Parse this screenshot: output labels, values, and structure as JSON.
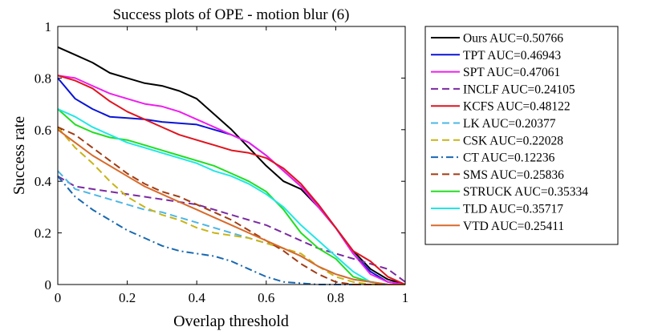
{
  "chart_data": {
    "type": "line",
    "title": "Success plots of OPE - motion blur (6)",
    "xlabel": "Overlap threshold",
    "ylabel": "Success rate",
    "xlim": [
      0,
      1
    ],
    "ylim": [
      0,
      1
    ],
    "xticks": [
      "0",
      "0.2",
      "0.4",
      "0.6",
      "0.8",
      "1"
    ],
    "yticks": [
      "0",
      "0.2",
      "0.4",
      "0.6",
      "0.8",
      "1"
    ],
    "legend_position": "outside-right",
    "x": [
      0,
      0.05,
      0.1,
      0.15,
      0.2,
      0.25,
      0.3,
      0.35,
      0.4,
      0.45,
      0.5,
      0.55,
      0.6,
      0.65,
      0.7,
      0.75,
      0.8,
      0.85,
      0.9,
      0.95,
      1
    ],
    "series": [
      {
        "name": "Ours AUC=0.50766",
        "color": "#000000",
        "dash": "solid",
        "values": [
          0.92,
          0.89,
          0.86,
          0.82,
          0.8,
          0.78,
          0.77,
          0.75,
          0.72,
          0.66,
          0.6,
          0.53,
          0.46,
          0.4,
          0.37,
          0.3,
          0.22,
          0.13,
          0.06,
          0.02,
          0.0
        ]
      },
      {
        "name": "TPT AUC=0.46943",
        "color": "#0a14d6",
        "dash": "solid",
        "values": [
          0.8,
          0.72,
          0.68,
          0.65,
          0.645,
          0.64,
          0.63,
          0.625,
          0.62,
          0.6,
          0.58,
          0.55,
          0.5,
          0.44,
          0.38,
          0.31,
          0.22,
          0.12,
          0.05,
          0.01,
          0.0
        ]
      },
      {
        "name": "SPT AUC=0.47061",
        "color": "#ee1eee",
        "dash": "solid",
        "values": [
          0.81,
          0.8,
          0.77,
          0.74,
          0.72,
          0.7,
          0.69,
          0.67,
          0.64,
          0.61,
          0.58,
          0.55,
          0.5,
          0.44,
          0.38,
          0.3,
          0.22,
          0.12,
          0.04,
          0.01,
          0.0
        ]
      },
      {
        "name": "INCLF AUC=0.24105",
        "color": "#7a2aa0",
        "dash": "dash",
        "values": [
          0.42,
          0.38,
          0.37,
          0.36,
          0.35,
          0.34,
          0.33,
          0.32,
          0.31,
          0.29,
          0.27,
          0.25,
          0.23,
          0.2,
          0.17,
          0.14,
          0.12,
          0.1,
          0.08,
          0.06,
          0.01
        ]
      },
      {
        "name": "KCFS AUC=0.48122",
        "color": "#e0141e",
        "dash": "solid",
        "values": [
          0.81,
          0.79,
          0.76,
          0.71,
          0.67,
          0.64,
          0.61,
          0.58,
          0.56,
          0.54,
          0.52,
          0.51,
          0.49,
          0.45,
          0.39,
          0.31,
          0.22,
          0.13,
          0.09,
          0.03,
          0.0
        ]
      },
      {
        "name": "LK AUC=0.20377",
        "color": "#4db6e6",
        "dash": "dash",
        "values": [
          0.44,
          0.37,
          0.35,
          0.33,
          0.31,
          0.29,
          0.28,
          0.26,
          0.24,
          0.22,
          0.2,
          0.18,
          0.16,
          0.14,
          0.11,
          0.07,
          0.04,
          0.02,
          0.01,
          0.0,
          0.0
        ]
      },
      {
        "name": "CSK AUC=0.22028",
        "color": "#c8b418",
        "dash": "dash",
        "values": [
          0.61,
          0.53,
          0.47,
          0.4,
          0.34,
          0.3,
          0.27,
          0.25,
          0.22,
          0.2,
          0.19,
          0.18,
          0.16,
          0.14,
          0.12,
          0.07,
          0.03,
          0.01,
          0.0,
          0.0,
          0.0
        ]
      },
      {
        "name": "CT AUC=0.12236",
        "color": "#1868b0",
        "dash": "dashdot",
        "values": [
          0.42,
          0.34,
          0.29,
          0.25,
          0.21,
          0.18,
          0.15,
          0.13,
          0.12,
          0.11,
          0.09,
          0.06,
          0.03,
          0.01,
          0.005,
          0.0,
          0.0,
          0.0,
          0.0,
          0.0,
          0.0
        ]
      },
      {
        "name": "SMS AUC=0.25836",
        "color": "#a03c14",
        "dash": "dash",
        "values": [
          0.61,
          0.58,
          0.53,
          0.48,
          0.43,
          0.39,
          0.36,
          0.34,
          0.31,
          0.28,
          0.25,
          0.21,
          0.17,
          0.13,
          0.08,
          0.04,
          0.01,
          0.0,
          0.0,
          0.0,
          0.0
        ]
      },
      {
        "name": "STRUCK AUC=0.35334",
        "color": "#22dd22",
        "dash": "solid",
        "values": [
          0.68,
          0.62,
          0.59,
          0.57,
          0.56,
          0.54,
          0.52,
          0.5,
          0.48,
          0.46,
          0.43,
          0.4,
          0.36,
          0.29,
          0.2,
          0.14,
          0.1,
          0.03,
          0.01,
          0.0,
          0.0
        ]
      },
      {
        "name": "TLD AUC=0.35717",
        "color": "#22e6e6",
        "dash": "solid",
        "values": [
          0.68,
          0.65,
          0.61,
          0.58,
          0.55,
          0.53,
          0.51,
          0.49,
          0.47,
          0.44,
          0.42,
          0.39,
          0.35,
          0.3,
          0.23,
          0.17,
          0.11,
          0.05,
          0.01,
          0.0,
          0.0
        ]
      },
      {
        "name": "VTD AUC=0.25411",
        "color": "#d86a2a",
        "dash": "solid",
        "values": [
          0.6,
          0.55,
          0.5,
          0.46,
          0.42,
          0.38,
          0.35,
          0.32,
          0.29,
          0.26,
          0.23,
          0.2,
          0.17,
          0.14,
          0.11,
          0.07,
          0.04,
          0.02,
          0.01,
          0.0,
          0.0
        ]
      }
    ]
  }
}
